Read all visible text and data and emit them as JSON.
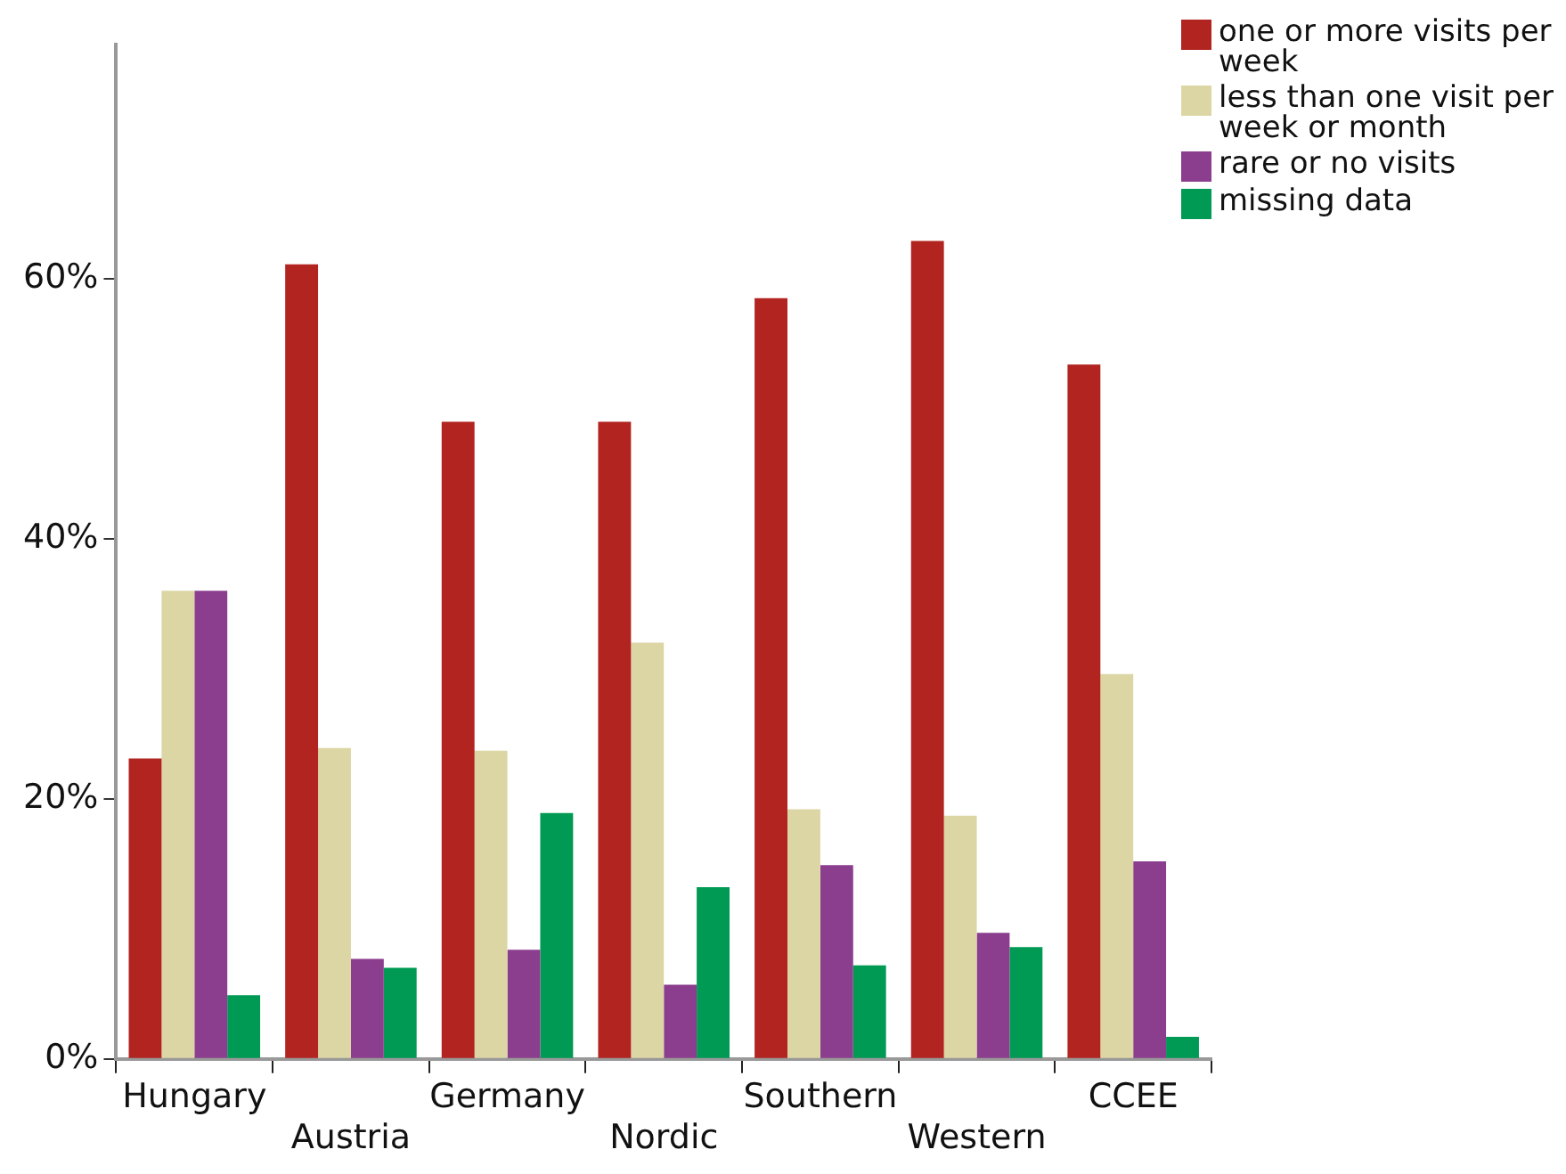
{
  "chart_data": {
    "type": "bar",
    "categories": [
      "Hungary",
      "Austria",
      "Germany",
      "Nordic",
      "Southern",
      "Western",
      "CCEE"
    ],
    "series": [
      {
        "name": "one or more visits per week",
        "color": "#b22420",
        "values": [
          23.1,
          61.1,
          49.0,
          49.0,
          58.5,
          62.9,
          53.4
        ]
      },
      {
        "name": "less than one visit per week or month",
        "color": "#dcd6a4",
        "values": [
          36.0,
          23.9,
          23.7,
          32.0,
          19.2,
          18.7,
          29.6
        ]
      },
      {
        "name": "rare or no visits",
        "color": "#8b3d8e",
        "values": [
          36.0,
          7.7,
          8.4,
          5.7,
          14.9,
          9.7,
          15.2
        ]
      },
      {
        "name": "missing data",
        "color": "#009a54",
        "values": [
          4.9,
          7.0,
          18.9,
          13.2,
          7.2,
          8.6,
          1.7
        ]
      }
    ],
    "ylim": [
      0,
      78
    ],
    "yticks": [
      {
        "value": 0,
        "label": "0%"
      },
      {
        "value": 20,
        "label": "20%"
      },
      {
        "value": 40,
        "label": "40%"
      },
      {
        "value": 60,
        "label": "60%"
      }
    ],
    "grid": false,
    "legend": "top right"
  }
}
